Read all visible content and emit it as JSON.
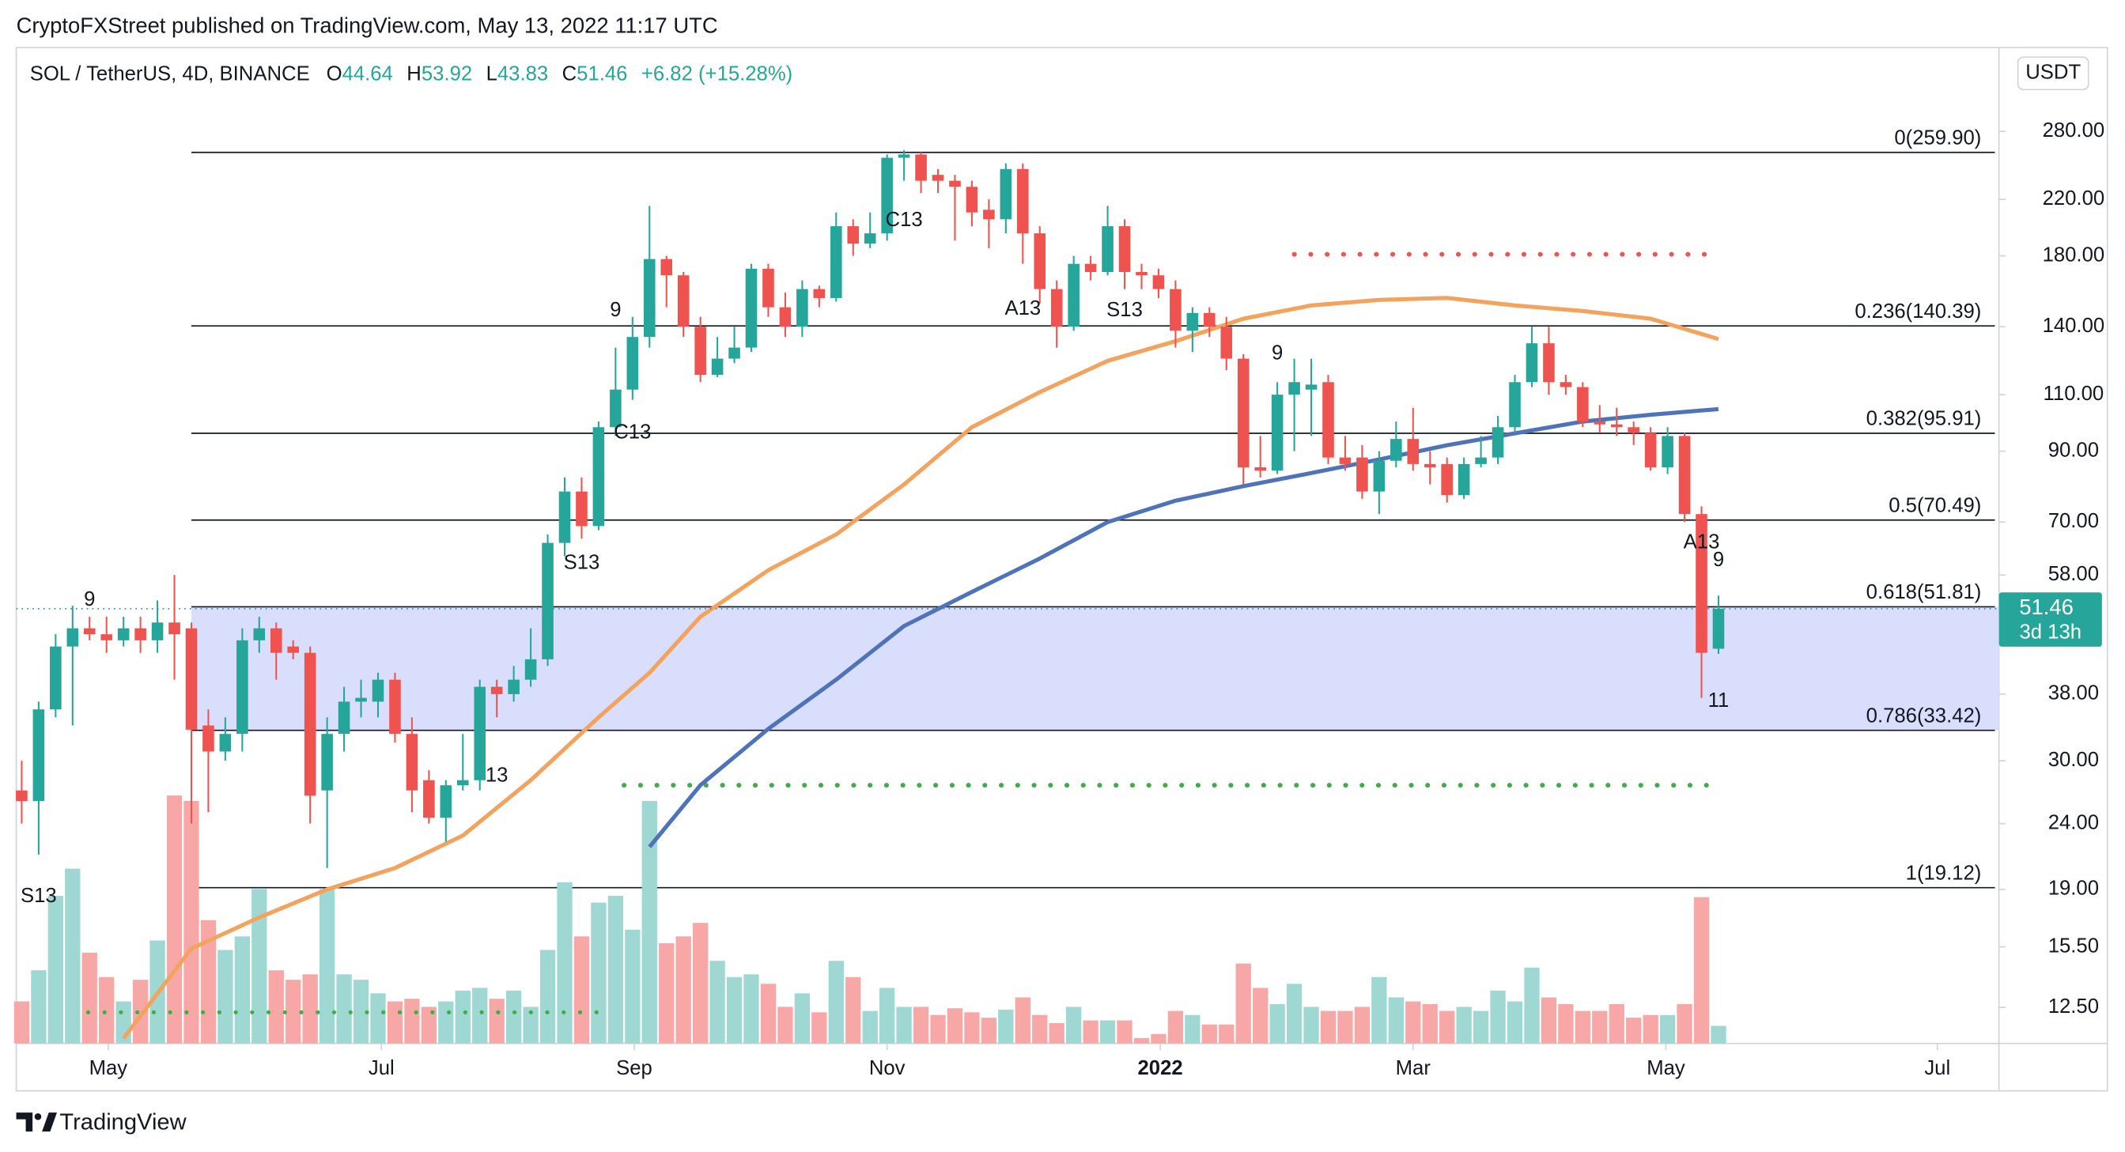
{
  "header": {
    "publisher_line": "CryptoFXStreet published on TradingView.com, May 13, 2022 11:17 UTC"
  },
  "footer": {
    "brand": "TradingView"
  },
  "chart_data": {
    "type": "candlestick",
    "symbol": "SOL / TetherUS, 4D, BINANCE",
    "ohlc_letters": [
      "O",
      "H",
      "L",
      "C"
    ],
    "change": "+6.82 (+15.28%)",
    "currency": "USDT",
    "countdown": "3d 13h",
    "log_scale": true,
    "up_color": "#26a69a",
    "down_color": "#ef5350",
    "volume_up_color": "#9fd8d2",
    "volume_down_color": "#f7a8a6",
    "open": [
      27,
      26,
      36,
      45,
      48,
      47,
      46,
      48,
      46,
      49,
      48,
      34,
      31,
      33,
      46,
      48,
      45,
      44,
      27,
      33,
      37,
      37,
      40,
      33,
      28,
      24.5,
      27.5,
      28,
      39,
      38,
      40,
      43,
      65,
      78,
      69,
      98,
      112,
      135,
      178,
      168,
      140,
      118,
      125,
      130,
      172,
      150,
      140,
      160,
      155,
      200,
      188,
      195,
      255,
      258,
      240,
      235,
      230,
      212,
      205,
      245,
      195,
      160,
      140,
      175,
      170,
      200,
      170,
      168,
      160,
      138,
      147,
      140,
      125,
      85,
      84,
      110,
      112,
      115,
      88,
      88,
      78,
      87,
      94,
      86,
      86,
      77,
      86,
      88,
      98,
      115,
      132,
      115,
      113,
      100,
      99,
      98,
      96,
      85,
      95,
      72,
      44.64
    ],
    "high": [
      30,
      37,
      47,
      52,
      50,
      50,
      50,
      50,
      53,
      58,
      49,
      36,
      35,
      48,
      50,
      49,
      46,
      45,
      35,
      39,
      40,
      41,
      41,
      35,
      29,
      28,
      33,
      40,
      40,
      42,
      48,
      67,
      82,
      82,
      100,
      130,
      145,
      215,
      180,
      170,
      145,
      135,
      140,
      175,
      175,
      158,
      165,
      162,
      210,
      205,
      210,
      258,
      262,
      260,
      245,
      240,
      235,
      220,
      250,
      250,
      200,
      165,
      180,
      180,
      215,
      205,
      175,
      172,
      165,
      150,
      150,
      145,
      127,
      95,
      115,
      125,
      125,
      118,
      95,
      92,
      90,
      100,
      105,
      90,
      88,
      88,
      95,
      102,
      118,
      140,
      140,
      118,
      115,
      106,
      105,
      100,
      98,
      98,
      96,
      74,
      53.92
    ],
    "low": [
      24,
      21.5,
      35,
      34,
      46,
      44,
      45,
      44,
      44,
      40,
      24,
      25,
      30,
      31,
      44,
      40,
      43,
      24,
      20.5,
      31,
      35,
      35,
      32,
      25,
      24,
      22.5,
      27,
      27,
      35,
      37,
      39,
      42,
      62,
      66,
      68,
      95,
      108,
      130,
      150,
      135,
      115,
      117,
      123,
      128,
      145,
      135,
      135,
      150,
      153,
      180,
      185,
      190,
      235,
      225,
      225,
      190,
      200,
      185,
      195,
      175,
      152,
      130,
      138,
      165,
      168,
      160,
      160,
      155,
      130,
      128,
      135,
      120,
      80,
      82,
      83,
      90,
      95,
      86,
      84,
      76,
      72,
      85,
      84,
      80,
      75,
      76,
      85,
      86,
      96,
      113,
      110,
      110,
      98,
      96,
      95,
      92,
      84,
      83,
      70,
      37.5,
      43.83
    ],
    "close": [
      26,
      36,
      45,
      48,
      47,
      46,
      48,
      46,
      49,
      47,
      33.5,
      31,
      33,
      46,
      48,
      44,
      44,
      26.5,
      33,
      37,
      37.5,
      40,
      33,
      27,
      24.5,
      27.5,
      28,
      39,
      38,
      40,
      43,
      65,
      78,
      69,
      98,
      112,
      135,
      178,
      168,
      140,
      118,
      125,
      130,
      172,
      150,
      140,
      160,
      155,
      200,
      188,
      195,
      255,
      258,
      235,
      235,
      230,
      210,
      205,
      245,
      195,
      160,
      140,
      175,
      170,
      200,
      170,
      168,
      160,
      138,
      147,
      140,
      125,
      85,
      84,
      110,
      115,
      114,
      88,
      86,
      78,
      87,
      94,
      86,
      85,
      77,
      86,
      88,
      98,
      115,
      132,
      115,
      113,
      100,
      99,
      98,
      96,
      85,
      95,
      72,
      44,
      51.46
    ],
    "volume": [
      31,
      54,
      109,
      129,
      67,
      49,
      31,
      47,
      76,
      183,
      179,
      91,
      69,
      79,
      114,
      54,
      47,
      51,
      114,
      51,
      47,
      37,
      31,
      33,
      27,
      31,
      39,
      41,
      33,
      39,
      27,
      69,
      119,
      79,
      104,
      109,
      84,
      179,
      74,
      79,
      89,
      61,
      49,
      51,
      44,
      27,
      37,
      23,
      61,
      49,
      24,
      41,
      27,
      27,
      21,
      26,
      23,
      19,
      25,
      34,
      21,
      15,
      27,
      17,
      17,
      17,
      4,
      7,
      24,
      21,
      14,
      14,
      59,
      41,
      29,
      44,
      27,
      24,
      24,
      27,
      49,
      34,
      31,
      29,
      24,
      27,
      24,
      39,
      31,
      56,
      34,
      29,
      24,
      24,
      29,
      19,
      21,
      21,
      29,
      108,
      13
    ],
    "vlim": [
      0,
      200
    ],
    "xlim": [
      -0.32,
      116.53
    ],
    "xticks": [
      {
        "value": 5.1,
        "label": "May"
      },
      {
        "value": 21.2,
        "label": "Jul"
      },
      {
        "value": 36.1,
        "label": "Sep"
      },
      {
        "value": 51,
        "label": "Nov"
      },
      {
        "value": 67.1,
        "label": "2022",
        "bold": true
      },
      {
        "value": 82,
        "label": "Mar"
      },
      {
        "value": 96.9,
        "label": "May"
      },
      {
        "value": 112.9,
        "label": "Jul"
      }
    ],
    "ylim": [
      11,
      377
    ],
    "yticks": [
      {
        "value": 280,
        "label": "280.00"
      },
      {
        "value": 220,
        "label": "220.00"
      },
      {
        "value": 180,
        "label": "180.00"
      },
      {
        "value": 140,
        "label": "140.00"
      },
      {
        "value": 110,
        "label": "110.00"
      },
      {
        "value": 90,
        "label": "90.00"
      },
      {
        "value": 70,
        "label": "70.00"
      },
      {
        "value": 58,
        "label": "58.00"
      },
      {
        "value": 38,
        "label": "38.00"
      },
      {
        "value": 30,
        "label": "30.00"
      },
      {
        "value": 24,
        "label": "24.00"
      },
      {
        "value": 19,
        "label": "19.00"
      },
      {
        "value": 15.5,
        "label": "15.50"
      },
      {
        "value": 12.5,
        "label": "12.50"
      }
    ],
    "fib_from": 10,
    "fib_levels": [
      {
        "value": 259.9,
        "label": "0(259.90)"
      },
      {
        "value": 140.39,
        "label": "0.236(140.39)"
      },
      {
        "value": 95.91,
        "label": "0.382(95.91)"
      },
      {
        "value": 70.49,
        "label": "0.5(70.49)"
      },
      {
        "value": 51.81,
        "label": "0.618(51.81)",
        "shade": "#d9defc"
      },
      {
        "value": 33.42,
        "label": "0.786(33.42)"
      },
      {
        "value": 19.12,
        "label": "1(19.12)"
      }
    ],
    "moving_averages": [
      {
        "color": "#f4a35e",
        "x": [
          6,
          10,
          14,
          18,
          22,
          26,
          30,
          34,
          37,
          40,
          44,
          48,
          52,
          56,
          60,
          64,
          68,
          72,
          76,
          80,
          84,
          88,
          92,
          96,
          100
        ],
        "values": [
          11.2,
          15.4,
          17.2,
          19,
          20.5,
          23,
          28,
          35,
          41,
          50,
          59,
          67,
          80,
          98,
          111,
          124,
          133,
          144,
          151,
          154,
          155,
          151,
          148,
          144,
          134
        ]
      },
      {
        "color": "#4f73b9",
        "x": [
          37,
          40,
          44,
          48,
          52,
          56,
          60,
          64,
          68,
          72,
          76,
          80,
          84,
          88,
          92,
          96,
          100
        ],
        "values": [
          22.1,
          27.5,
          33.6,
          40,
          48.4,
          54.6,
          61.5,
          70,
          75.5,
          79.5,
          83.3,
          87.4,
          91.9,
          95.9,
          100,
          102.4,
          104.5
        ]
      }
    ],
    "dotted_levels": [
      {
        "value": 181,
        "from": 75,
        "to": 100,
        "color": "#f05350"
      },
      {
        "value": 27.5,
        "from": 35.5,
        "to": 100,
        "color": "#3fae49"
      }
    ],
    "annotations": [
      {
        "text": "9",
        "x": 4,
        "price": 53,
        "color": "#3fae49"
      },
      {
        "text": "S13",
        "x": 1,
        "price": 18.5,
        "color": "#f59c1a"
      },
      {
        "text": "13",
        "x": 28,
        "price": 28.4,
        "color": "#2196f3"
      },
      {
        "text": "S13",
        "x": 33,
        "price": 60.4,
        "color": "#f59c1a"
      },
      {
        "text": "9",
        "x": 35,
        "price": 148,
        "color": "#3fae49"
      },
      {
        "text": "C13",
        "x": 36,
        "price": 96,
        "color": "#d13fd6"
      },
      {
        "text": "C13",
        "x": 52,
        "price": 204,
        "color": "#d13fd6"
      },
      {
        "text": "A13",
        "x": 59,
        "price": 149,
        "color": "#2196f3"
      },
      {
        "text": "S13",
        "x": 65,
        "price": 148,
        "color": "#f59c1a"
      },
      {
        "text": "9",
        "x": 74,
        "price": 127,
        "color": "#f05350"
      },
      {
        "text": "A13",
        "x": 99,
        "price": 65,
        "color": "#2196f3"
      },
      {
        "text": "9",
        "x": 100,
        "price": 61,
        "color": "#f05350"
      },
      {
        "text": "11",
        "x": 100,
        "price": 37,
        "color": "#f05350"
      }
    ]
  }
}
